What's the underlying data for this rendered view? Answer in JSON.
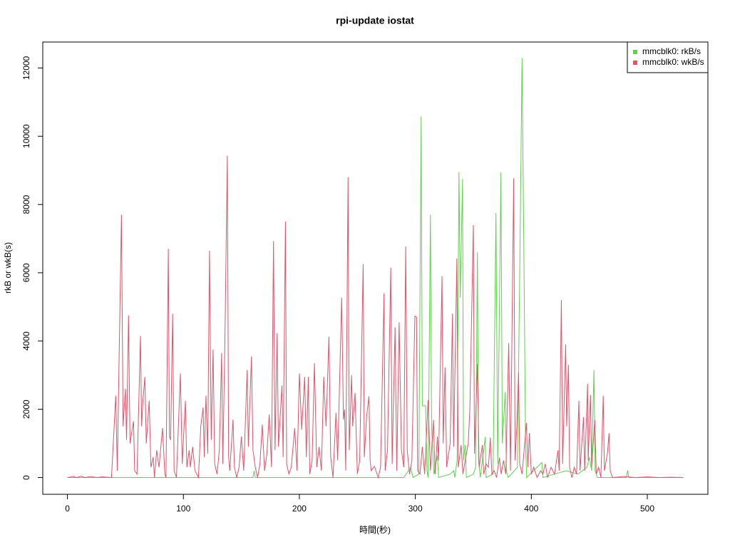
{
  "chart_data": {
    "type": "line",
    "title": "rpi-update iostat",
    "x_label": "時間(秒)",
    "y_label": "rkB or wkB(s)",
    "xlim": [
      -21.24,
      552.24
    ],
    "ylim": [
      -490.8,
      12760.8
    ],
    "xticks": [
      0,
      100,
      200,
      300,
      400,
      500
    ],
    "yticks": [
      0,
      2000,
      4000,
      6000,
      8000,
      10000,
      12000
    ],
    "grid": false,
    "legend": "top-right",
    "series": [
      {
        "name": "mmcblk0: rkB/s",
        "color": "#61d04f",
        "x": [
          0,
          160,
          161,
          162,
          290,
          296,
          298,
          303,
          305,
          306,
          308.8,
          310,
          311,
          313,
          314,
          316,
          319,
          320,
          330,
          333,
          334,
          336,
          337.6,
          338.7,
          340.7,
          341.5,
          343,
          344,
          350,
          352,
          353.5,
          354.5,
          356,
          360.3,
          361,
          367,
          369.5,
          371,
          373.8,
          375,
          377.5,
          378.5,
          380,
          388,
          390,
          392,
          393.5,
          395,
          396,
          409,
          410,
          420,
          430,
          440,
          448,
          450,
          452,
          454,
          455,
          457,
          482,
          483,
          484,
          531
        ],
        "values": [
          0,
          0,
          200,
          0,
          0,
          300,
          0,
          100,
          10580,
          2100,
          2100,
          200,
          0,
          7700,
          1500,
          100,
          650,
          0,
          100,
          200,
          0,
          500,
          8950,
          5270,
          8750,
          500,
          950,
          0,
          100,
          300,
          6600,
          500,
          0,
          1190,
          0,
          100,
          7750,
          400,
          8940,
          1000,
          2500,
          200,
          0,
          300,
          6000,
          12290,
          6900,
          1000,
          0,
          440,
          0,
          100,
          200,
          100,
          300,
          600,
          200,
          3150,
          200,
          0,
          0,
          210,
          0,
          0
        ]
      },
      {
        "name": "mmcblk0: wkB/s",
        "color": "#df536b",
        "x": [
          0,
          5,
          8,
          12,
          15,
          20,
          25,
          30,
          38,
          41.7,
          43,
          46.6,
          48,
          50,
          51,
          52.7,
          54,
          57,
          58,
          60,
          63,
          64,
          65,
          66.8,
          68,
          70.5,
          72,
          74,
          75,
          77,
          79,
          82,
          84,
          85,
          87,
          88,
          89,
          90.7,
          92,
          94,
          97.4,
          99,
          101.7,
          103,
          105,
          106,
          108,
          110,
          113,
          115,
          117,
          118,
          119.5,
          121,
          122.5,
          124,
          125.6,
          127,
          129,
          131,
          133,
          134,
          136,
          137.9,
          139,
          140,
          142.8,
          144,
          146,
          148,
          150,
          152,
          155,
          156,
          158.7,
          160,
          162,
          164,
          166,
          168,
          170,
          172,
          174,
          176,
          177.7,
          179,
          180.8,
          182,
          185,
          186,
          188,
          189,
          191,
          193,
          196,
          198,
          200,
          202,
          204.6,
          206,
          207.7,
          209,
          211,
          213,
          215,
          217,
          219,
          221,
          223,
          225.5,
          227,
          229,
          231.6,
          233,
          236.5,
          238,
          239,
          240,
          242,
          243,
          245,
          246,
          248,
          250,
          252,
          255,
          256,
          258,
          260,
          261,
          262,
          264.7,
          266,
          268,
          270,
          273,
          274,
          276,
          278.8,
          280,
          282.5,
          284,
          286,
          288,
          290,
          291.7,
          293,
          295,
          297,
          299.6,
          301,
          302,
          304,
          306,
          308,
          311,
          313,
          315.6,
          317,
          319,
          320,
          323,
          324,
          325.6,
          327,
          330,
          332,
          333,
          335.8,
          337,
          339.5,
          341,
          343,
          345.6,
          347,
          350,
          351,
          353.5,
          355,
          357.8,
          359,
          361,
          363,
          364.6,
          366,
          368,
          370,
          372.5,
          374,
          376,
          378,
          380.5,
          382,
          384.8,
          386,
          387.5,
          389,
          390,
          392,
          395.8,
          397,
          398.3,
          400,
          402,
          405,
          408,
          410,
          412,
          414,
          417,
          420,
          423,
          424,
          425.9,
          427,
          429.6,
          430.5,
          432,
          433,
          435,
          437,
          439,
          441,
          442,
          445,
          446,
          448.5,
          449,
          451,
          452,
          454.7,
          456,
          458,
          460,
          462,
          463,
          465.7,
          467,
          468,
          470,
          480,
          490,
          500,
          510,
          520,
          531
        ],
        "values": [
          0,
          30,
          0,
          40,
          0,
          30,
          0,
          20,
          0,
          2400,
          200,
          7700,
          1500,
          2600,
          1100,
          4750,
          1000,
          1650,
          200,
          100,
          4150,
          1500,
          2200,
          2950,
          1000,
          2250,
          300,
          600,
          0,
          800,
          300,
          1450,
          100,
          0,
          6700,
          1200,
          1100,
          4800,
          200,
          0,
          3050,
          400,
          2250,
          300,
          800,
          300,
          900,
          200,
          0,
          1500,
          2050,
          600,
          2400,
          700,
          6650,
          1100,
          3750,
          400,
          100,
          800,
          3650,
          400,
          4500,
          9430,
          600,
          200,
          1700,
          300,
          0,
          300,
          1200,
          200,
          3150,
          900,
          3550,
          800,
          300,
          0,
          400,
          1550,
          200,
          700,
          1850,
          300,
          6930,
          800,
          4230,
          900,
          2700,
          600,
          7500,
          400,
          100,
          300,
          1450,
          200,
          3050,
          1400,
          2950,
          600,
          2950,
          100,
          500,
          3350,
          300,
          900,
          200,
          2950,
          1500,
          4130,
          600,
          0,
          1900,
          500,
          5270,
          1700,
          2000,
          200,
          8800,
          800,
          3000,
          1500,
          2480,
          100,
          500,
          6250,
          600,
          1800,
          2380,
          500,
          200,
          330,
          200,
          0,
          300,
          5400,
          200,
          800,
          6150,
          400,
          4400,
          200,
          4550,
          800,
          300,
          6770,
          800,
          100,
          500,
          4730,
          4700,
          200,
          100,
          900,
          100,
          2270,
          200,
          1690,
          100,
          1200,
          500,
          5900,
          1000,
          3230,
          300,
          1000,
          4800,
          900,
          6420,
          300,
          950,
          100,
          500,
          1000,
          2000,
          7400,
          700,
          3330,
          300,
          950,
          100,
          400,
          300,
          1170,
          100,
          200,
          0,
          580,
          100,
          500,
          100,
          3940,
          200,
          8770,
          500,
          1500,
          3080,
          400,
          100,
          1600,
          300,
          1300,
          100,
          300,
          0,
          200,
          100,
          400,
          0,
          300,
          100,
          800,
          200,
          5200,
          400,
          3900,
          1500,
          3300,
          300,
          0,
          300,
          100,
          2250,
          200,
          1770,
          200,
          2750,
          500,
          2420,
          300,
          1690,
          100,
          300,
          0,
          2400,
          200,
          730,
          1300,
          200,
          0,
          30,
          0,
          20,
          0,
          10,
          0
        ]
      }
    ]
  }
}
